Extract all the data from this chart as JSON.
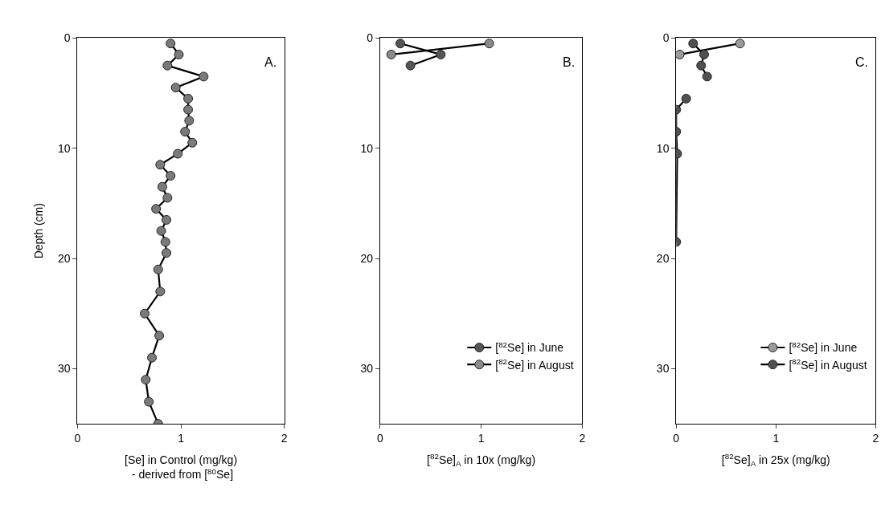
{
  "chart_data": [
    {
      "type": "line",
      "xlabel": "[Se] in Control (mg/kg)\n - derived from [$^{80}$Se]",
      "ylabel": "Depth (cm)",
      "annotations": [
        "A."
      ],
      "xlim": [
        0,
        2
      ],
      "xticks": [
        0,
        1,
        2
      ],
      "ylim": [
        35,
        0
      ],
      "yticks": [
        0,
        10,
        20,
        30
      ],
      "marker": "circle",
      "line_style": "solid",
      "legend": false,
      "series": [
        {
          "color": "#7a7a7a",
          "x": [
            0.9,
            0.98,
            0.87,
            1.22,
            0.95,
            1.07,
            1.07,
            1.08,
            1.04,
            1.11,
            0.97,
            0.8,
            0.9,
            0.82,
            0.87,
            0.76,
            0.86,
            0.81,
            0.85,
            0.86,
            0.78,
            0.8,
            0.65,
            0.79,
            0.72,
            0.66,
            0.69,
            0.78
          ],
          "values": [
            0.5,
            1.5,
            2.5,
            3.5,
            4.5,
            5.5,
            6.5,
            7.5,
            8.5,
            9.5,
            10.5,
            11.5,
            12.5,
            13.5,
            14.5,
            15.5,
            16.5,
            17.5,
            18.5,
            19.5,
            21,
            23,
            25,
            27,
            29,
            31,
            33,
            35
          ]
        }
      ]
    },
    {
      "type": "line",
      "xlabel": "[$^{82}$Se]$_{A}$ in 10x (mg/kg)",
      "annotations": [
        "B."
      ],
      "xlim": [
        0,
        2
      ],
      "xticks": [
        0,
        1,
        2
      ],
      "ylim": [
        35,
        0
      ],
      "yticks": [
        0,
        10,
        20,
        30
      ],
      "marker": "circle",
      "line_style": "solid",
      "legend": "bottom right",
      "series": [
        {
          "name": "[$^{82}$Se] in June",
          "color": "#555555",
          "x": [
            0.2,
            0.6,
            0.3
          ],
          "values": [
            0.5,
            1.5,
            2.5
          ]
        },
        {
          "name": "[$^{82}$Se] in August",
          "color": "#8a8a8a",
          "x": [
            1.08,
            0.11
          ],
          "values": [
            0.5,
            1.5
          ]
        }
      ]
    },
    {
      "type": "line",
      "xlabel": "[$^{82}$Se]$_{A}$ in 25x (mg/kg)",
      "annotations": [
        "C."
      ],
      "xlim": [
        0,
        2
      ],
      "xticks": [
        0,
        1,
        2
      ],
      "ylim": [
        35,
        0
      ],
      "yticks": [
        0,
        10,
        20,
        30
      ],
      "marker": "circle",
      "line_style": "solid",
      "legend": "bottom right",
      "series": [
        {
          "name": "[$^{82}$Se] in June",
          "color": "#9a9a9a",
          "x": [
            0.64,
            0.035
          ],
          "values": [
            0.5,
            1.5
          ]
        },
        {
          "name": "[$^{82}$Se] in August",
          "color": "#505050",
          "x": [
            0.17,
            0.28,
            0.25,
            0.31,
            null,
            0.1,
            0.0,
            0.0,
            0.01,
            0.0
          ],
          "values": [
            0.5,
            1.5,
            2.5,
            3.5,
            null,
            5.5,
            6.5,
            8.5,
            10.5,
            18.5
          ]
        }
      ]
    }
  ]
}
